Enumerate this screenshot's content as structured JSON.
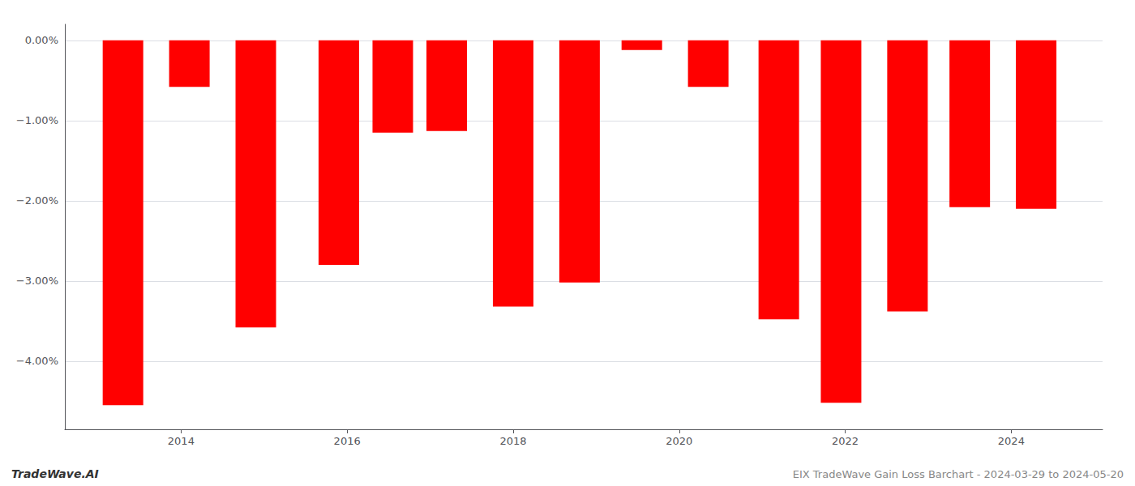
{
  "chart_data": {
    "type": "bar",
    "x": [
      2013.3,
      2014.1,
      2014.9,
      2015.9,
      2016.55,
      2017.2,
      2018.0,
      2018.8,
      2019.55,
      2020.35,
      2021.2,
      2021.95,
      2022.75,
      2023.5,
      2024.3
    ],
    "values": [
      -4.55,
      -0.58,
      -3.58,
      -2.8,
      -1.15,
      -1.13,
      -3.32,
      -3.02,
      -0.12,
      -0.58,
      -3.48,
      -4.52,
      -3.38,
      -2.08,
      -2.1
    ],
    "color": "#ff0000",
    "xlim": [
      2012.6,
      2025.1
    ],
    "xticks": [
      2014,
      2016,
      2018,
      2020,
      2022,
      2024
    ],
    "ylim": [
      -4.85,
      0.2
    ],
    "yticks": [
      {
        "value": 0.0,
        "label": "0.00%"
      },
      {
        "value": -1.0,
        "label": "−1.00%"
      },
      {
        "value": -2.0,
        "label": "−2.00%"
      },
      {
        "value": -3.0,
        "label": "−3.00%"
      },
      {
        "value": -4.0,
        "label": "−4.00%"
      }
    ],
    "grid": true,
    "annotations": [
      "TradeWave.AI",
      "EIX TradeWave Gain Loss Barchart - 2024-03-29 to 2024-05-20"
    ]
  }
}
